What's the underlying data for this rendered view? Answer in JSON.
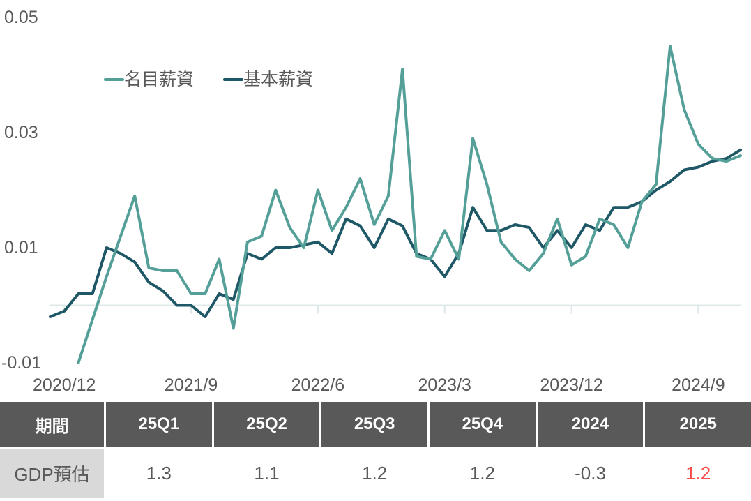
{
  "colors": {
    "series_nominal": "#54a099",
    "series_base": "#1e5766",
    "axis_text": "#595959",
    "gridline": "#dfe8e8",
    "table_header_bg": "#595959",
    "table_header_text": "#ffffff",
    "table_label_bg": "#d9d9d9",
    "table_cell_text": "#595959",
    "highlight_value": "#fb4a47",
    "background": "#ffffff"
  },
  "chart_data": {
    "type": "line",
    "x": [
      "2020/11",
      "2020/12",
      "2021/1",
      "2021/2",
      "2021/3",
      "2021/4",
      "2021/5",
      "2021/6",
      "2021/7",
      "2021/8",
      "2021/9",
      "2021/10",
      "2021/11",
      "2021/12",
      "2022/1",
      "2022/2",
      "2022/3",
      "2022/4",
      "2022/5",
      "2022/6",
      "2022/7",
      "2022/8",
      "2022/9",
      "2022/10",
      "2022/11",
      "2022/12",
      "2023/1",
      "2023/2",
      "2023/3",
      "2023/4",
      "2023/5",
      "2023/6",
      "2023/7",
      "2023/8",
      "2023/9",
      "2023/10",
      "2023/11",
      "2023/12",
      "2024/1",
      "2024/2",
      "2024/3",
      "2024/4",
      "2024/5",
      "2024/6",
      "2024/7",
      "2024/8",
      "2024/9",
      "2024/10",
      "2024/11",
      "2024/12"
    ],
    "series": [
      {
        "name": "名目薪資",
        "color_key": "series_nominal",
        "values": [
          null,
          null,
          -0.01,
          -0.0025,
          0.005,
          0.012,
          0.019,
          0.0065,
          0.006,
          0.006,
          0.002,
          0.002,
          0.008,
          -0.004,
          0.011,
          0.012,
          0.02,
          0.0135,
          0.01,
          0.02,
          0.013,
          0.017,
          0.022,
          0.014,
          0.019,
          0.041,
          0.0085,
          0.008,
          0.013,
          0.008,
          0.029,
          0.021,
          0.011,
          0.008,
          0.006,
          0.009,
          0.015,
          0.007,
          0.0085,
          0.015,
          0.014,
          0.01,
          0.018,
          0.021,
          0.045,
          0.034,
          0.028,
          0.0255,
          0.025,
          0.026
        ]
      },
      {
        "name": "基本薪資",
        "color_key": "series_base",
        "values": [
          -0.002,
          -0.001,
          0.002,
          0.002,
          0.01,
          0.009,
          0.0075,
          0.004,
          0.0025,
          0.0,
          0.0,
          -0.002,
          0.002,
          0.001,
          0.009,
          0.008,
          0.01,
          0.01,
          0.0105,
          0.011,
          0.009,
          0.015,
          0.0138,
          0.01,
          0.015,
          0.0138,
          0.009,
          0.008,
          0.005,
          0.009,
          0.017,
          0.013,
          0.013,
          0.014,
          0.0135,
          0.01,
          0.013,
          0.01,
          0.014,
          0.013,
          0.017,
          0.017,
          0.018,
          0.02,
          0.0215,
          0.0235,
          0.024,
          0.025,
          0.0255,
          0.027
        ]
      }
    ],
    "title": "",
    "xlabel": "",
    "ylabel": "",
    "ylim": [
      -0.01,
      0.05
    ],
    "y_tick_labels": [
      "0.05",
      "0.03",
      "0.01",
      "-0.01"
    ],
    "y_tick_values": [
      0.05,
      0.03,
      0.01,
      -0.01
    ],
    "x_tick_labels": [
      "2020/12",
      "2021/9",
      "2022/6",
      "2023/3",
      "2023/12",
      "2024/9"
    ],
    "x_tick_indices": [
      1,
      10,
      19,
      28,
      37,
      46
    ],
    "grid": "zero baseline only, with small x tick marks",
    "legend_position": "top-left inside plot"
  },
  "table": {
    "headers": [
      "期間",
      "25Q1",
      "25Q2",
      "25Q3",
      "25Q4",
      "2024",
      "2025"
    ],
    "rows": [
      {
        "label": "GDP預估",
        "values": [
          "1.3",
          "1.1",
          "1.2",
          "1.2",
          "-0.3",
          "1.2"
        ],
        "highlight_index": 5
      }
    ]
  }
}
